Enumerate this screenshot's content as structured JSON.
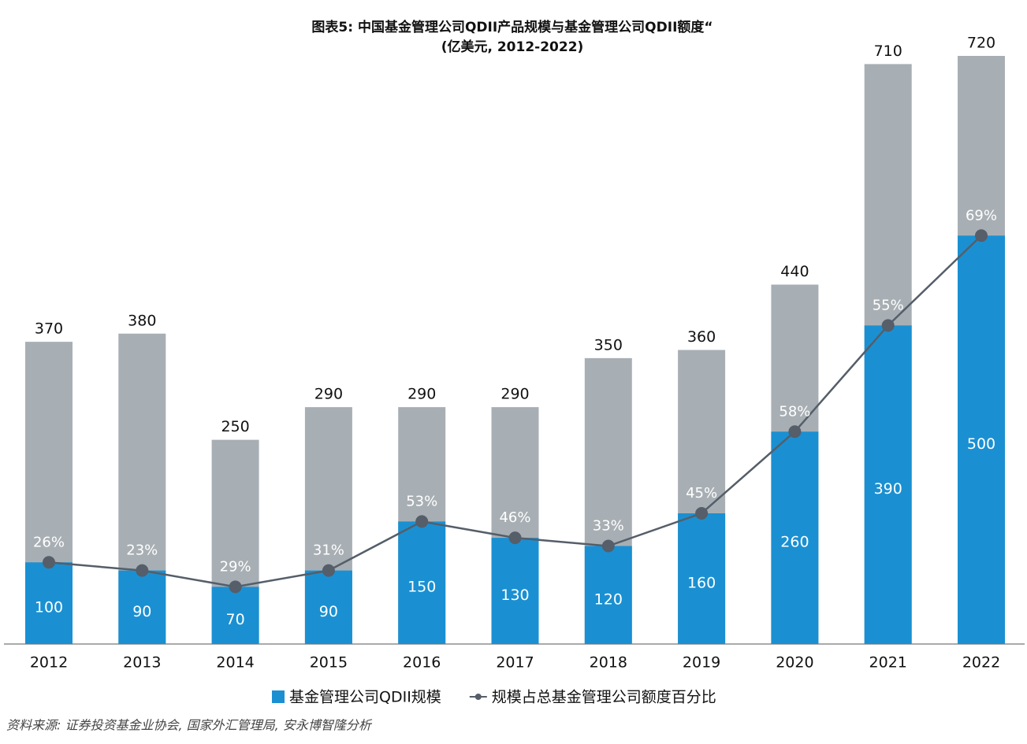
{
  "chart_data": {
    "type": "bar",
    "title": "图表5:  中国基金管理公司QDII产品规模与基金管理公司QDII额度“",
    "subtitle": "(亿美元, 2012-2022)",
    "categories": [
      "2012",
      "2013",
      "2014",
      "2015",
      "2016",
      "2017",
      "2018",
      "2019",
      "2020",
      "2021",
      "2022"
    ],
    "series": [
      {
        "color": "#a8afb4",
        "values": [
          370,
          380,
          250,
          290,
          290,
          290,
          350,
          360,
          440,
          710,
          720
        ]
      },
      {
        "name": "基金管理公司QDII规模",
        "color": "#1a90d2",
        "values": [
          100,
          90,
          70,
          90,
          150,
          130,
          120,
          160,
          260,
          390,
          500
        ]
      },
      {
        "name": "规模占总基金管理公司额度百分比",
        "type": "line",
        "color": "#555e69",
        "values": [
          26,
          23,
          29,
          31,
          53,
          46,
          33,
          45,
          58,
          55,
          69
        ],
        "value_labels": [
          "26%",
          "23%",
          "29%",
          "31%",
          "53%",
          "46%",
          "33%",
          "45%",
          "58%",
          "55%",
          "69%"
        ]
      }
    ],
    "ylim": [
      0,
      720
    ],
    "source": "资料来源:  证券投资基金业协会,  国家外汇管理局,  安永博智隆分析"
  }
}
